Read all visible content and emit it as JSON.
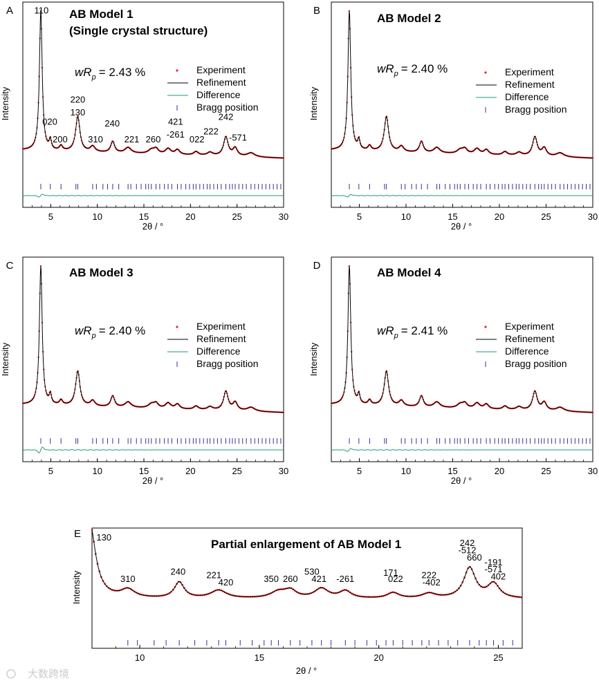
{
  "figure": {
    "watermark": "大数跨境",
    "colors": {
      "experiment": "#e8242a",
      "refinement": "#000000",
      "difference": "#1e9e6a",
      "bragg": "#3b2e8f",
      "axis": "#000000"
    }
  },
  "chart_data": [
    {
      "id": "A",
      "type": "line",
      "panel_label": "A",
      "title": "AB Model 1",
      "subtitle": "(Single crystal structure)",
      "wrp": {
        "prefix": "wR",
        "sub": "p",
        "value": "= 2.43 %"
      },
      "xlabel": "2θ / °",
      "ylabel": "Intensity",
      "xlim": [
        2,
        30
      ],
      "ylim": [
        0,
        100
      ],
      "xticks": [
        "5",
        "10",
        "15",
        "20",
        "25",
        "30"
      ],
      "legend": {
        "position": "right",
        "entries": [
          "Experiment",
          "Refinement",
          "Difference",
          "Bragg position"
        ]
      },
      "background": {
        "start": 12,
        "end": 7
      },
      "peaks": [
        {
          "x": 3.93,
          "h": 88,
          "w": 0.18
        },
        {
          "x": 4.95,
          "h": 6,
          "w": 0.14
        },
        {
          "x": 6.1,
          "h": 3,
          "w": 0.2
        },
        {
          "x": 7.9,
          "h": 22,
          "w": 0.28
        },
        {
          "x": 9.5,
          "h": 3.5,
          "w": 0.3
        },
        {
          "x": 11.65,
          "h": 7,
          "w": 0.25
        },
        {
          "x": 13.3,
          "h": 3.5,
          "w": 0.4
        },
        {
          "x": 15.8,
          "h": 2.5,
          "w": 0.4
        },
        {
          "x": 16.3,
          "h": 3,
          "w": 0.3
        },
        {
          "x": 17.6,
          "h": 3.5,
          "w": 0.35
        },
        {
          "x": 18.6,
          "h": 3,
          "w": 0.3
        },
        {
          "x": 20.6,
          "h": 2.2,
          "w": 0.3
        },
        {
          "x": 22.1,
          "h": 2,
          "w": 0.35
        },
        {
          "x": 23.8,
          "h": 12,
          "w": 0.3
        },
        {
          "x": 24.8,
          "h": 5,
          "w": 0.3
        },
        {
          "x": 26.5,
          "h": 2.5,
          "w": 0.5
        }
      ],
      "bragg_positions": [
        3.93,
        4.95,
        6.1,
        7.7,
        7.9,
        9.5,
        9.9,
        10.6,
        11.1,
        11.65,
        12.3,
        13.3,
        13.6,
        14.2,
        14.7,
        15.2,
        15.5,
        15.8,
        16.3,
        16.7,
        17.2,
        17.6,
        18.0,
        18.6,
        19.0,
        19.5,
        19.9,
        20.3,
        20.6,
        21.0,
        21.4,
        21.8,
        22.1,
        22.5,
        22.9,
        23.3,
        23.8,
        24.2,
        24.5,
        24.8,
        25.2,
        25.6,
        26.0,
        26.5,
        26.9,
        27.3,
        27.7,
        28.1,
        28.5,
        28.9,
        29.3,
        29.7
      ],
      "difference_wiggle": 3.5,
      "annotations": [
        {
          "text": "110",
          "x": 4.0,
          "y": 98
        },
        {
          "text": "020",
          "x": 4.9,
          "y": 28
        },
        {
          "text": "200",
          "x": 6.0,
          "y": 17
        },
        {
          "text": "220",
          "x": 7.9,
          "y": 42
        },
        {
          "text": "130",
          "x": 7.9,
          "y": 34
        },
        {
          "text": "310",
          "x": 9.8,
          "y": 17
        },
        {
          "text": "240",
          "x": 11.6,
          "y": 27
        },
        {
          "text": "221",
          "x": 13.7,
          "y": 17
        },
        {
          "text": "260",
          "x": 16.0,
          "y": 17
        },
        {
          "text": "421",
          "x": 18.4,
          "y": 28
        },
        {
          "text": "-261",
          "x": 18.4,
          "y": 20
        },
        {
          "text": "022",
          "x": 20.7,
          "y": 17
        },
        {
          "text": "222",
          "x": 22.2,
          "y": 22
        },
        {
          "text": "242",
          "x": 23.8,
          "y": 31
        },
        {
          "text": "-571",
          "x": 25.1,
          "y": 18
        }
      ]
    },
    {
      "id": "B",
      "type": "line",
      "panel_label": "B",
      "title": "AB Model 2",
      "wrp": {
        "prefix": "wR",
        "sub": "p",
        "value": "= 2.40 %"
      },
      "xlabel": "2θ / °",
      "ylabel": "Intensity",
      "xlim": [
        2,
        30
      ],
      "ylim": [
        0,
        100
      ],
      "xticks": [
        "5",
        "10",
        "15",
        "20",
        "25",
        "30"
      ],
      "legend": {
        "position": "right",
        "entries": [
          "Experiment",
          "Refinement",
          "Difference",
          "Bragg position"
        ]
      },
      "background": {
        "start": 12,
        "end": 7
      },
      "peaks": [
        {
          "x": 3.93,
          "h": 88,
          "w": 0.18
        },
        {
          "x": 4.95,
          "h": 6,
          "w": 0.14
        },
        {
          "x": 6.1,
          "h": 3,
          "w": 0.2
        },
        {
          "x": 7.9,
          "h": 22,
          "w": 0.28
        },
        {
          "x": 9.5,
          "h": 3.5,
          "w": 0.3
        },
        {
          "x": 11.65,
          "h": 7,
          "w": 0.25
        },
        {
          "x": 13.3,
          "h": 3.5,
          "w": 0.4
        },
        {
          "x": 15.8,
          "h": 2.5,
          "w": 0.4
        },
        {
          "x": 16.3,
          "h": 3,
          "w": 0.3
        },
        {
          "x": 17.6,
          "h": 3.5,
          "w": 0.35
        },
        {
          "x": 18.6,
          "h": 3,
          "w": 0.3
        },
        {
          "x": 20.6,
          "h": 2.2,
          "w": 0.3
        },
        {
          "x": 22.1,
          "h": 2,
          "w": 0.35
        },
        {
          "x": 23.8,
          "h": 12,
          "w": 0.3
        },
        {
          "x": 24.8,
          "h": 5,
          "w": 0.3
        },
        {
          "x": 26.5,
          "h": 2.5,
          "w": 0.5
        }
      ],
      "bragg_positions": [
        3.93,
        4.95,
        6.1,
        7.7,
        7.9,
        9.5,
        9.9,
        10.6,
        11.1,
        11.65,
        12.3,
        13.3,
        13.6,
        14.2,
        14.7,
        15.2,
        15.5,
        15.8,
        16.3,
        16.7,
        17.2,
        17.6,
        18.0,
        18.6,
        19.0,
        19.5,
        19.9,
        20.3,
        20.6,
        21.0,
        21.4,
        21.8,
        22.1,
        22.5,
        22.9,
        23.3,
        23.8,
        24.2,
        24.5,
        24.8,
        25.2,
        25.6,
        26.0,
        26.5,
        26.9,
        27.3,
        27.7,
        28.1,
        28.5,
        28.9,
        29.3,
        29.7
      ],
      "difference_wiggle": 3.0,
      "annotations": []
    },
    {
      "id": "C",
      "type": "line",
      "panel_label": "C",
      "title": "AB Model 3",
      "wrp": {
        "prefix": "wR",
        "sub": "p",
        "value": "= 2.40 %"
      },
      "xlabel": "2θ / °",
      "ylabel": "Intensity",
      "xlim": [
        2,
        30
      ],
      "ylim": [
        0,
        100
      ],
      "xticks": [
        "5",
        "10",
        "15",
        "20",
        "25",
        "30"
      ],
      "legend": {
        "position": "right",
        "entries": [
          "Experiment",
          "Refinement",
          "Difference",
          "Bragg position"
        ]
      },
      "background": {
        "start": 12,
        "end": 7
      },
      "peaks": [
        {
          "x": 3.93,
          "h": 88,
          "w": 0.18
        },
        {
          "x": 4.95,
          "h": 6,
          "w": 0.14
        },
        {
          "x": 6.1,
          "h": 3,
          "w": 0.2
        },
        {
          "x": 7.9,
          "h": 22,
          "w": 0.28
        },
        {
          "x": 9.5,
          "h": 3.5,
          "w": 0.3
        },
        {
          "x": 11.65,
          "h": 7,
          "w": 0.25
        },
        {
          "x": 13.3,
          "h": 3.5,
          "w": 0.4
        },
        {
          "x": 15.8,
          "h": 2.5,
          "w": 0.4
        },
        {
          "x": 16.3,
          "h": 3,
          "w": 0.3
        },
        {
          "x": 17.6,
          "h": 3.5,
          "w": 0.35
        },
        {
          "x": 18.6,
          "h": 3,
          "w": 0.3
        },
        {
          "x": 20.6,
          "h": 2.2,
          "w": 0.3
        },
        {
          "x": 22.1,
          "h": 2,
          "w": 0.35
        },
        {
          "x": 23.8,
          "h": 12,
          "w": 0.3
        },
        {
          "x": 24.8,
          "h": 5,
          "w": 0.3
        },
        {
          "x": 26.5,
          "h": 2.5,
          "w": 0.5
        }
      ],
      "bragg_positions": [
        3.93,
        4.95,
        6.1,
        7.7,
        7.9,
        9.5,
        9.9,
        10.6,
        11.1,
        11.65,
        12.3,
        13.3,
        13.6,
        14.2,
        14.7,
        15.2,
        15.5,
        15.8,
        16.3,
        16.7,
        17.2,
        17.6,
        18.0,
        18.6,
        19.0,
        19.5,
        19.9,
        20.3,
        20.6,
        21.0,
        21.4,
        21.8,
        22.1,
        22.5,
        22.9,
        23.3,
        23.8,
        24.2,
        24.5,
        24.8,
        25.2,
        25.6,
        26.0,
        26.5,
        26.9,
        27.3,
        27.7,
        28.1,
        28.5,
        28.9,
        29.3,
        29.7
      ],
      "difference_wiggle": 7.0,
      "annotations": []
    },
    {
      "id": "D",
      "type": "line",
      "panel_label": "D",
      "title": "AB Model 4",
      "wrp": {
        "prefix": "wR",
        "sub": "p",
        "value": "= 2.41 %"
      },
      "xlabel": "2θ / °",
      "ylabel": "Intensity",
      "xlim": [
        2,
        30
      ],
      "ylim": [
        0,
        100
      ],
      "xticks": [
        "5",
        "10",
        "15",
        "20",
        "25",
        "30"
      ],
      "legend": {
        "position": "right",
        "entries": [
          "Experiment",
          "Refinement",
          "Difference",
          "Bragg position"
        ]
      },
      "background": {
        "start": 12,
        "end": 7
      },
      "peaks": [
        {
          "x": 3.93,
          "h": 88,
          "w": 0.18
        },
        {
          "x": 4.95,
          "h": 6,
          "w": 0.14
        },
        {
          "x": 6.1,
          "h": 3,
          "w": 0.2
        },
        {
          "x": 7.9,
          "h": 22,
          "w": 0.28
        },
        {
          "x": 9.5,
          "h": 3.5,
          "w": 0.3
        },
        {
          "x": 11.65,
          "h": 7,
          "w": 0.25
        },
        {
          "x": 13.3,
          "h": 3.5,
          "w": 0.4
        },
        {
          "x": 15.8,
          "h": 2.5,
          "w": 0.4
        },
        {
          "x": 16.3,
          "h": 3,
          "w": 0.3
        },
        {
          "x": 17.6,
          "h": 3.5,
          "w": 0.35
        },
        {
          "x": 18.6,
          "h": 3,
          "w": 0.3
        },
        {
          "x": 20.6,
          "h": 2.2,
          "w": 0.3
        },
        {
          "x": 22.1,
          "h": 2,
          "w": 0.35
        },
        {
          "x": 23.8,
          "h": 12,
          "w": 0.3
        },
        {
          "x": 24.8,
          "h": 5,
          "w": 0.3
        },
        {
          "x": 26.5,
          "h": 2.5,
          "w": 0.5
        }
      ],
      "bragg_positions": [
        3.93,
        4.95,
        6.1,
        7.7,
        7.9,
        9.5,
        9.9,
        10.6,
        11.1,
        11.65,
        12.3,
        13.3,
        13.6,
        14.2,
        14.7,
        15.2,
        15.5,
        15.8,
        16.3,
        16.7,
        17.2,
        17.6,
        18.0,
        18.6,
        19.0,
        19.5,
        19.9,
        20.3,
        20.6,
        21.0,
        21.4,
        21.8,
        22.1,
        22.5,
        22.9,
        23.3,
        23.8,
        24.2,
        24.5,
        24.8,
        25.2,
        25.6,
        26.0,
        26.5,
        26.9,
        27.3,
        27.7,
        28.1,
        28.5,
        28.9,
        29.3,
        29.7
      ],
      "difference_wiggle": 3.5,
      "annotations": []
    },
    {
      "id": "E",
      "type": "line",
      "panel_label": "E",
      "title": "Partial enlargement of AB Model 1",
      "xlabel": "2θ / °",
      "ylabel": "Intensity",
      "xlim": [
        8,
        26
      ],
      "ylim": [
        0,
        100
      ],
      "xticks": [
        "10",
        "15",
        "20",
        "25"
      ],
      "background": {
        "start": 22,
        "end": 22
      },
      "peaks": [
        {
          "x": 7.9,
          "h": 95,
          "w": 0.3
        },
        {
          "x": 9.5,
          "h": 10,
          "w": 0.35
        },
        {
          "x": 11.65,
          "h": 20,
          "w": 0.25
        },
        {
          "x": 13.3,
          "h": 10,
          "w": 0.4
        },
        {
          "x": 15.8,
          "h": 8,
          "w": 0.4
        },
        {
          "x": 16.3,
          "h": 9,
          "w": 0.3
        },
        {
          "x": 17.6,
          "h": 12,
          "w": 0.35
        },
        {
          "x": 18.6,
          "h": 9,
          "w": 0.3
        },
        {
          "x": 20.6,
          "h": 7,
          "w": 0.3
        },
        {
          "x": 22.1,
          "h": 6,
          "w": 0.35
        },
        {
          "x": 23.8,
          "h": 38,
          "w": 0.3
        },
        {
          "x": 24.8,
          "h": 18,
          "w": 0.3
        }
      ],
      "bragg_positions": [
        9.5,
        9.9,
        10.6,
        11.1,
        11.65,
        12.3,
        12.8,
        13.3,
        13.6,
        14.2,
        14.7,
        15.2,
        15.5,
        15.8,
        16.3,
        16.7,
        17.2,
        17.6,
        18.0,
        18.6,
        19.0,
        19.5,
        19.9,
        20.3,
        20.6,
        21.0,
        21.4,
        21.8,
        22.1,
        22.5,
        22.9,
        23.3,
        23.8,
        24.2,
        24.5,
        24.8,
        25.2,
        25.6
      ],
      "annotations": [
        {
          "text": "130",
          "x": 8.5,
          "y": 95
        },
        {
          "text": "310",
          "x": 9.5,
          "y": 43
        },
        {
          "text": "240",
          "x": 11.6,
          "y": 52
        },
        {
          "text": "221",
          "x": 13.1,
          "y": 48
        },
        {
          "text": "420",
          "x": 13.6,
          "y": 39
        },
        {
          "text": "350",
          "x": 15.5,
          "y": 43
        },
        {
          "text": "260",
          "x": 16.3,
          "y": 43
        },
        {
          "text": "530",
          "x": 17.2,
          "y": 52
        },
        {
          "text": "421",
          "x": 17.5,
          "y": 43
        },
        {
          "text": "-261",
          "x": 18.6,
          "y": 43
        },
        {
          "text": "171",
          "x": 20.5,
          "y": 51
        },
        {
          "text": "022",
          "x": 20.7,
          "y": 43
        },
        {
          "text": "222",
          "x": 22.1,
          "y": 48
        },
        {
          "text": "-402",
          "x": 22.2,
          "y": 39
        },
        {
          "text": "242",
          "x": 23.7,
          "y": 88
        },
        {
          "text": "-512",
          "x": 23.7,
          "y": 79
        },
        {
          "text": "660",
          "x": 24.0,
          "y": 70
        },
        {
          "text": "-191",
          "x": 24.8,
          "y": 64
        },
        {
          "text": "-571",
          "x": 24.8,
          "y": 55
        },
        {
          "text": "402",
          "x": 25.0,
          "y": 46
        }
      ]
    }
  ]
}
